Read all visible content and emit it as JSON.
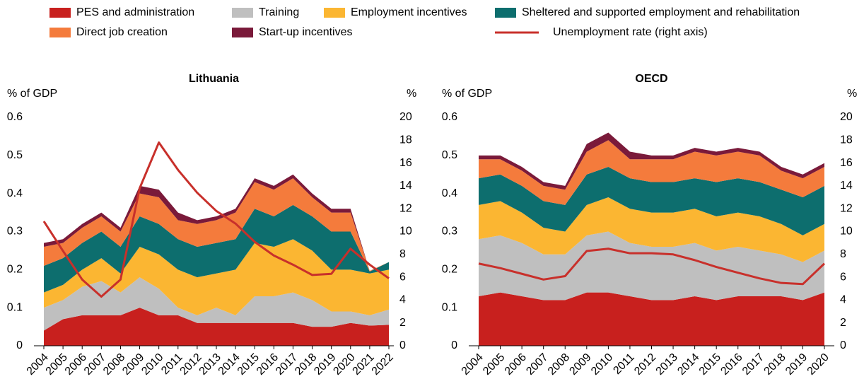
{
  "chart_data": [
    {
      "type": "stacked_area_line",
      "title": "Lithuania",
      "ylabel": "% of GDP",
      "y2label": "%",
      "categories": [
        "2004",
        "2005",
        "2006",
        "2007",
        "2008",
        "2009",
        "2010",
        "2011",
        "2012",
        "2013",
        "2014",
        "2015",
        "2016",
        "2017",
        "2018",
        "2019",
        "2020",
        "2021",
        "2022"
      ],
      "ylim": [
        0,
        0.6
      ],
      "yticks": [
        0,
        0.1,
        0.2,
        0.3,
        0.4,
        0.5,
        0.6
      ],
      "y2lim": [
        0,
        20
      ],
      "y2ticks": [
        0,
        2,
        4,
        6,
        8,
        10,
        12,
        14,
        16,
        18,
        20
      ],
      "series": [
        {
          "name": "PES and administration",
          "color": "#c8201e",
          "values": [
            0.04,
            0.07,
            0.08,
            0.08,
            0.08,
            0.1,
            0.08,
            0.08,
            0.06,
            0.06,
            0.06,
            0.06,
            0.06,
            0.06,
            0.05,
            0.05,
            0.06,
            0.053,
            0.055
          ]
        },
        {
          "name": "Training",
          "color": "#bfbfbf",
          "values": [
            0.06,
            0.05,
            0.075,
            0.09,
            0.06,
            0.08,
            0.07,
            0.02,
            0.02,
            0.04,
            0.02,
            0.07,
            0.07,
            0.08,
            0.07,
            0.04,
            0.03,
            0.027,
            0.04
          ]
        },
        {
          "name": "Employment incentives",
          "color": "#fbb632",
          "values": [
            0.04,
            0.04,
            0.045,
            0.06,
            0.05,
            0.08,
            0.09,
            0.1,
            0.1,
            0.09,
            0.12,
            0.14,
            0.13,
            0.14,
            0.13,
            0.11,
            0.11,
            0.11,
            0.105
          ]
        },
        {
          "name": "Sheltered and supported employment and rehabilitation",
          "color": "#0d6e6e",
          "values": [
            0.07,
            0.07,
            0.07,
            0.07,
            0.07,
            0.08,
            0.08,
            0.08,
            0.08,
            0.08,
            0.08,
            0.09,
            0.08,
            0.09,
            0.09,
            0.1,
            0.1,
            0.005,
            0.02
          ]
        },
        {
          "name": "Direct job creation",
          "color": "#f47b3c",
          "values": [
            0.05,
            0.04,
            0.04,
            0.04,
            0.04,
            0.06,
            0.07,
            0.05,
            0.06,
            0.06,
            0.07,
            0.07,
            0.07,
            0.07,
            0.05,
            0.05,
            0.05,
            0.002,
            0
          ]
        },
        {
          "name": "Start-up incentives",
          "color": "#7a1a3a",
          "values": [
            0.01,
            0.01,
            0.01,
            0.01,
            0.01,
            0.02,
            0.02,
            0.02,
            0.01,
            0.01,
            0.01,
            0.01,
            0.01,
            0.01,
            0.01,
            0.01,
            0.01,
            0,
            0
          ]
        },
        {
          "name": "Unemployment rate (right axis)",
          "color": "#c8302b",
          "axis": "y2",
          "values": [
            10.9,
            8.3,
            5.8,
            4.3,
            5.8,
            13.8,
            17.8,
            15.4,
            13.4,
            11.8,
            10.7,
            9.1,
            7.9,
            7.1,
            6.2,
            6.3,
            8.5,
            7.1,
            5.9
          ]
        }
      ]
    },
    {
      "type": "stacked_area_line",
      "title": "OECD",
      "ylabel": "% of GDP",
      "y2label": "%",
      "categories": [
        "2004",
        "2005",
        "2006",
        "2007",
        "2008",
        "2009",
        "2010",
        "2011",
        "2012",
        "2013",
        "2014",
        "2015",
        "2016",
        "2017",
        "2018",
        "2019",
        "2020"
      ],
      "ylim": [
        0,
        0.6
      ],
      "yticks": [
        0,
        0.1,
        0.2,
        0.3,
        0.4,
        0.5,
        0.6
      ],
      "y2lim": [
        0,
        20
      ],
      "y2ticks": [
        0,
        2,
        4,
        6,
        8,
        10,
        12,
        14,
        16,
        18,
        20
      ],
      "series": [
        {
          "color": "#c8201e",
          "values": [
            0.13,
            0.14,
            0.13,
            0.12,
            0.12,
            0.14,
            0.14,
            0.13,
            0.12,
            0.12,
            0.13,
            0.12,
            0.13,
            0.13,
            0.13,
            0.12,
            0.14
          ]
        },
        {
          "color": "#bfbfbf",
          "values": [
            0.15,
            0.15,
            0.14,
            0.12,
            0.12,
            0.15,
            0.16,
            0.14,
            0.14,
            0.14,
            0.14,
            0.13,
            0.13,
            0.12,
            0.11,
            0.1,
            0.11
          ]
        },
        {
          "color": "#fbb632",
          "values": [
            0.09,
            0.09,
            0.08,
            0.07,
            0.06,
            0.08,
            0.09,
            0.09,
            0.09,
            0.09,
            0.09,
            0.09,
            0.09,
            0.09,
            0.08,
            0.07,
            0.07
          ]
        },
        {
          "color": "#0d6e6e",
          "values": [
            0.07,
            0.07,
            0.07,
            0.07,
            0.07,
            0.08,
            0.08,
            0.08,
            0.08,
            0.08,
            0.08,
            0.09,
            0.09,
            0.09,
            0.09,
            0.1,
            0.1
          ]
        },
        {
          "color": "#f47b3c",
          "values": [
            0.05,
            0.04,
            0.04,
            0.04,
            0.04,
            0.06,
            0.07,
            0.05,
            0.06,
            0.06,
            0.07,
            0.07,
            0.07,
            0.07,
            0.05,
            0.05,
            0.05
          ]
        },
        {
          "color": "#7a1a3a",
          "values": [
            0.01,
            0.01,
            0.01,
            0.01,
            0.01,
            0.02,
            0.02,
            0.02,
            0.01,
            0.01,
            0.01,
            0.01,
            0.01,
            0.01,
            0.01,
            0.01,
            0.01
          ]
        },
        {
          "color": "#c8302b",
          "axis": "y2",
          "values": [
            7.2,
            6.8,
            6.3,
            5.8,
            6.1,
            8.3,
            8.5,
            8.1,
            8.1,
            8.0,
            7.5,
            6.9,
            6.4,
            5.9,
            5.5,
            5.4,
            7.2
          ]
        }
      ]
    }
  ]
}
